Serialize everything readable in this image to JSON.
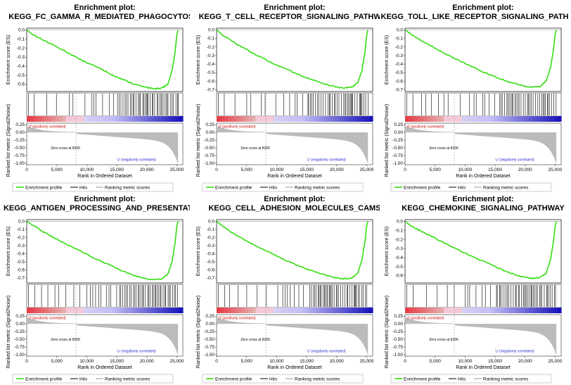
{
  "figure": {
    "title_prefix": "Enrichment plot:",
    "common": {
      "y_label_es": "Enrichment score (ES)",
      "y_label_metric": "Ranked list metric (Signal2Noise)",
      "x_label": "Rank in Ordered Dataset",
      "x_ticks": [
        "0",
        "5,000",
        "10,000",
        "15,000",
        "20,000",
        "25,000"
      ],
      "metric_ticks": [
        "0.25",
        "0.00",
        "-0.25",
        "-0.50",
        "-0.75",
        "-1.00"
      ],
      "zero_cross": "Zero cross at 8206",
      "pos_label": "'d' (positively correlated)",
      "neg_label": "'u' (negatively correlated)",
      "legend": [
        "Enrichment profile",
        "Hits",
        "Ranking metric scores"
      ]
    },
    "colors": {
      "es_line": "#33dd11",
      "legend_border": "#aaaaaa",
      "metric_fill": "#bbbbbb",
      "pos_text": "#cc0000",
      "neg_text": "#2222cc"
    }
  },
  "chart_data": [
    {
      "type": "line",
      "title": "KEGG_FC_GAMMA_R_MEDIATED_PHAGOCYTOSIS",
      "xlabel": "Rank in Ordered Dataset",
      "ylabel": "Enrichment score (ES)",
      "xlim": [
        0,
        26000
      ],
      "ylim": [
        -0.68,
        0.02
      ],
      "es_ticks": [
        "0.0",
        "-0.1",
        "-0.2",
        "-0.3",
        "-0.4",
        "-0.5",
        "-0.6"
      ],
      "es_tick_values": [
        0.0,
        -0.1,
        -0.2,
        -0.3,
        -0.4,
        -0.5,
        -0.6
      ],
      "es_curve": {
        "x": [
          0,
          1000,
          3000,
          6000,
          9000,
          12000,
          15000,
          17500,
          19500,
          21000,
          22500,
          23500,
          24200,
          24700,
          25000,
          25200
        ],
        "y": [
          0.0,
          -0.05,
          -0.12,
          -0.22,
          -0.33,
          -0.42,
          -0.52,
          -0.59,
          -0.63,
          -0.65,
          -0.64,
          -0.6,
          -0.45,
          -0.25,
          -0.05,
          0.0
        ]
      }
    },
    {
      "type": "line",
      "title": "KEGG_T_CELL_RECEPTOR_SIGNALING_PATHWAY",
      "xlabel": "Rank in Ordered Dataset",
      "ylabel": "Enrichment score (ES)",
      "xlim": [
        0,
        26000
      ],
      "ylim": [
        -0.72,
        0.02
      ],
      "es_ticks": [
        "0.0",
        "-0.1",
        "-0.2",
        "-0.3",
        "-0.4",
        "-0.5",
        "-0.6",
        "-0.7"
      ],
      "es_tick_values": [
        0.0,
        -0.1,
        -0.2,
        -0.3,
        -0.4,
        -0.5,
        -0.6,
        -0.7
      ],
      "es_curve": {
        "x": [
          0,
          1000,
          3000,
          6000,
          9000,
          12000,
          15000,
          17500,
          19500,
          21000,
          22500,
          23500,
          24200,
          24700,
          25000,
          25200
        ],
        "y": [
          0.0,
          -0.06,
          -0.15,
          -0.27,
          -0.38,
          -0.47,
          -0.56,
          -0.62,
          -0.66,
          -0.68,
          -0.67,
          -0.62,
          -0.48,
          -0.26,
          -0.06,
          0.0
        ]
      }
    },
    {
      "type": "line",
      "title": "KEGG_TOLL_LIKE_RECEPTOR_SIGNALING_PATHWAY",
      "xlabel": "Rank in Ordered Dataset",
      "ylabel": "Enrichment score (ES)",
      "xlim": [
        0,
        26000
      ],
      "ylim": [
        -0.72,
        0.02
      ],
      "es_ticks": [
        "0.0",
        "-0.1",
        "-0.2",
        "-0.3",
        "-0.4",
        "-0.5",
        "-0.6",
        "-0.7"
      ],
      "es_tick_values": [
        0.0,
        -0.1,
        -0.2,
        -0.3,
        -0.4,
        -0.5,
        -0.6,
        -0.7
      ],
      "es_curve": {
        "x": [
          0,
          1000,
          3000,
          6000,
          9000,
          12000,
          15000,
          17500,
          19500,
          21000,
          22500,
          23500,
          24200,
          24700,
          25000,
          25200
        ],
        "y": [
          0.0,
          -0.05,
          -0.14,
          -0.25,
          -0.36,
          -0.46,
          -0.55,
          -0.61,
          -0.65,
          -0.67,
          -0.66,
          -0.6,
          -0.45,
          -0.24,
          -0.05,
          0.0
        ]
      }
    },
    {
      "type": "line",
      "title": "KEGG_ANTIGEN_PROCESSING_AND_PRESENTATION",
      "xlabel": "Rank in Ordered Dataset",
      "ylabel": "Enrichment score (ES)",
      "xlim": [
        0,
        26000
      ],
      "ylim": [
        -0.76,
        0.02
      ],
      "es_ticks": [
        "0.0",
        "-0.1",
        "-0.2",
        "-0.3",
        "-0.4",
        "-0.5",
        "-0.6",
        "-0.7"
      ],
      "es_tick_values": [
        0.0,
        -0.1,
        -0.2,
        -0.3,
        -0.4,
        -0.5,
        -0.6,
        -0.7
      ],
      "es_curve": {
        "x": [
          0,
          1000,
          3000,
          6000,
          9000,
          12000,
          15000,
          17500,
          19500,
          21000,
          22500,
          23500,
          24200,
          24700,
          25000,
          25200
        ],
        "y": [
          0.0,
          -0.05,
          -0.14,
          -0.26,
          -0.37,
          -0.48,
          -0.58,
          -0.66,
          -0.7,
          -0.72,
          -0.71,
          -0.65,
          -0.5,
          -0.27,
          -0.06,
          0.0
        ]
      }
    },
    {
      "type": "line",
      "title": "KEGG_CELL_ADHESION_MOLECULES_CAMS",
      "xlabel": "Rank in Ordered Dataset",
      "ylabel": "Enrichment score (ES)",
      "xlim": [
        0,
        26000
      ],
      "ylim": [
        -0.76,
        0.02
      ],
      "es_ticks": [
        "0.0",
        "-0.1",
        "-0.2",
        "-0.3",
        "-0.4",
        "-0.5",
        "-0.6",
        "-0.7"
      ],
      "es_tick_values": [
        0.0,
        -0.1,
        -0.2,
        -0.3,
        -0.4,
        -0.5,
        -0.6,
        -0.7
      ],
      "es_curve": {
        "x": [
          0,
          1000,
          3000,
          6000,
          9000,
          12000,
          15000,
          17500,
          19500,
          21000,
          22500,
          23500,
          24200,
          24700,
          25000,
          25200
        ],
        "y": [
          0.0,
          -0.06,
          -0.16,
          -0.28,
          -0.39,
          -0.5,
          -0.59,
          -0.65,
          -0.69,
          -0.71,
          -0.7,
          -0.64,
          -0.48,
          -0.26,
          -0.06,
          0.0
        ]
      }
    },
    {
      "type": "line",
      "title": "KEGG_CHEMOKINE_SIGNALING_PATHWAY",
      "xlabel": "Rank in Ordered Dataset",
      "ylabel": "Enrichment score (ES)",
      "xlim": [
        0,
        26000
      ],
      "ylim": [
        -0.68,
        0.02
      ],
      "es_ticks": [
        "0.0",
        "-0.1",
        "-0.2",
        "-0.3",
        "-0.4",
        "-0.5",
        "-0.6"
      ],
      "es_tick_values": [
        0.0,
        -0.1,
        -0.2,
        -0.3,
        -0.4,
        -0.5,
        -0.6
      ],
      "es_curve": {
        "x": [
          0,
          1000,
          3000,
          6000,
          9000,
          12000,
          15000,
          17500,
          19500,
          21000,
          22500,
          23500,
          24200,
          24700,
          25000,
          25200
        ],
        "y": [
          0.0,
          -0.05,
          -0.12,
          -0.22,
          -0.32,
          -0.41,
          -0.5,
          -0.57,
          -0.61,
          -0.63,
          -0.62,
          -0.57,
          -0.43,
          -0.23,
          -0.05,
          0.0
        ]
      }
    }
  ]
}
